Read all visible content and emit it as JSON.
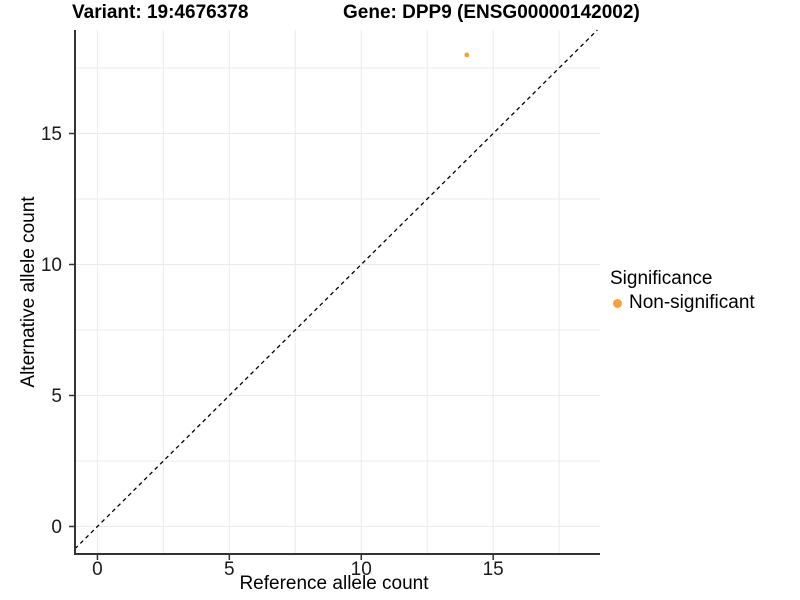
{
  "header": {
    "variant_title": "Variant: 19:4676378",
    "gene_title": "Gene: DPP9 (ENSG00000142002)"
  },
  "legend": {
    "title": "Significance",
    "items": [
      {
        "label": "Non-significant",
        "color": "#F8A13C"
      }
    ]
  },
  "chart_data": {
    "type": "scatter",
    "title": "Variant: 19:4676378   Gene: DPP9 (ENSG00000142002)",
    "xlabel": "Reference allele count",
    "ylabel": "Alternative allele count",
    "series": [
      {
        "name": "Non-significant",
        "color": "#F8A13C",
        "points": [
          {
            "x": 14,
            "y": 18
          }
        ]
      }
    ],
    "reference_line": {
      "type": "identity",
      "style": "dashed",
      "color": "#000000"
    },
    "xlim": [
      -0.85,
      19.05
    ],
    "ylim": [
      -1.05,
      18.95
    ],
    "x_ticks": [
      0,
      5,
      10,
      15
    ],
    "y_ticks": [
      0,
      5,
      10,
      15
    ],
    "grid_values": [
      0,
      2.5,
      5,
      7.5,
      10,
      12.5,
      15,
      17.5
    ],
    "grid": true,
    "grid_color": "#ebebeb",
    "axis_color": "#333333",
    "point_radius": 2.4,
    "legend_position": "right"
  }
}
